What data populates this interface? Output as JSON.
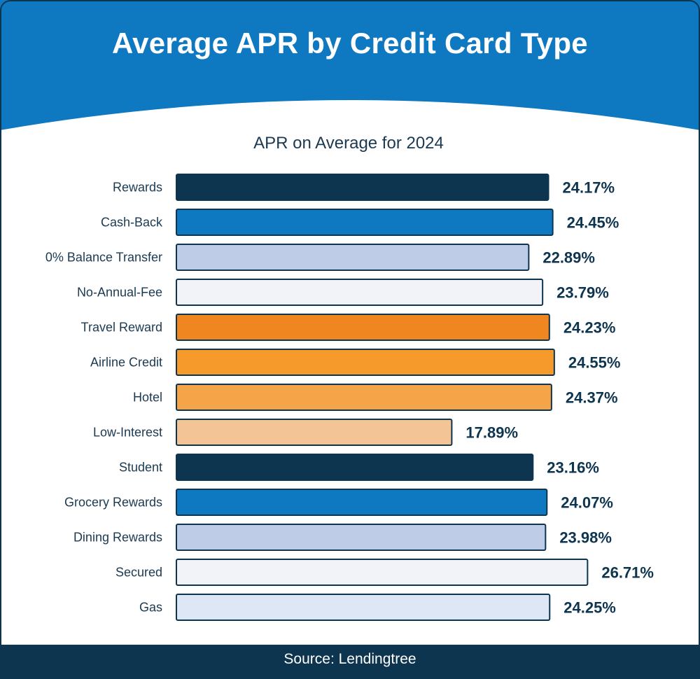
{
  "header": {
    "title": "Average APR by Credit Card Type"
  },
  "footer": {
    "source": "Source: Lendingtree"
  },
  "colors": {
    "header_bg": "#0e78c1",
    "footer_bg": "#0e3550",
    "frame": "#0e3550",
    "label_text": "#1b3a52",
    "value_text": "#0e3550"
  },
  "chart_data": {
    "type": "bar",
    "orientation": "horizontal",
    "title": "APR on Average for 2024",
    "xlabel": "",
    "ylabel": "",
    "grid": false,
    "legend": "none",
    "xlim": [
      0,
      27.5
    ],
    "categories": [
      "Rewards",
      "Cash-Back",
      "0% Balance Transfer",
      "No-Annual-Fee",
      "Travel Reward",
      "Airline Credit",
      "Hotel",
      "Low-Interest",
      "Student",
      "Grocery Rewards",
      "Dining Rewards",
      "Secured",
      "Gas"
    ],
    "values": [
      24.17,
      24.45,
      22.89,
      23.79,
      24.23,
      24.55,
      24.37,
      17.89,
      23.16,
      24.07,
      23.98,
      26.71,
      24.25
    ],
    "value_labels": [
      "24.17%",
      "24.45%",
      "22.89%",
      "23.79%",
      "24.23%",
      "24.55%",
      "24.37%",
      "17.89%",
      "23.16%",
      "24.07%",
      "23.98%",
      "26.71%",
      "24.25%"
    ],
    "bar_colors": [
      "#0e3550",
      "#0e78c1",
      "#bfcce8",
      "#f1f3f8",
      "#f0861f",
      "#f59a2b",
      "#f5a548",
      "#f3c596",
      "#0e3550",
      "#0e78c1",
      "#bfcce8",
      "#f1f3f8",
      "#dde7f5"
    ]
  }
}
